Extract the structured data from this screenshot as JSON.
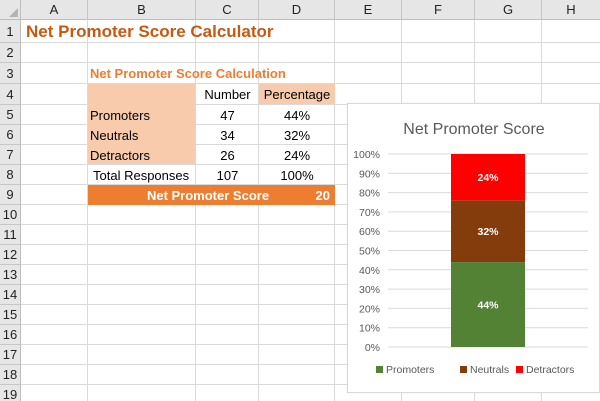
{
  "columns": [
    "A",
    "B",
    "C",
    "D",
    "E",
    "F",
    "G",
    "H"
  ],
  "rows": [
    "1",
    "2",
    "3",
    "4",
    "5",
    "6",
    "7",
    "8",
    "9",
    "10",
    "11",
    "12",
    "13",
    "14",
    "15",
    "16",
    "17",
    "18",
    "19"
  ],
  "sheet": {
    "title": "Net Promoter Score Calculator",
    "section_title": "Net Promoter Score Calculation",
    "header_number": "Number",
    "header_percentage": "Percentage",
    "rows": [
      {
        "label": "Promoters",
        "number": "47",
        "percentage": "44%"
      },
      {
        "label": "Neutrals",
        "number": "34",
        "percentage": "32%"
      },
      {
        "label": "Detractors",
        "number": "26",
        "percentage": "24%"
      }
    ],
    "total_label": "Total Responses",
    "total_number": "107",
    "total_percentage": "100%",
    "nps_label": "Net Promoter Score",
    "nps_value": "20"
  },
  "colors": {
    "title": "#c55a11",
    "peach": "#f8cbad",
    "orange": "#ed7d31",
    "promoters": "#548235",
    "neutrals": "#843c0c",
    "detractors": "#ff0000"
  },
  "chart_data": {
    "type": "bar",
    "stacked": true,
    "title": "Net Promoter Score",
    "categories": [
      ""
    ],
    "series": [
      {
        "name": "Promoters",
        "values": [
          44
        ],
        "label": "44%",
        "color": "#548235"
      },
      {
        "name": "Neutrals",
        "values": [
          32
        ],
        "label": "32%",
        "color": "#843c0c"
      },
      {
        "name": "Detractors",
        "values": [
          24
        ],
        "label": "24%",
        "color": "#ff0000"
      }
    ],
    "ylim": [
      0,
      100
    ],
    "yticks": [
      "0%",
      "10%",
      "20%",
      "30%",
      "40%",
      "50%",
      "60%",
      "70%",
      "80%",
      "90%",
      "100%"
    ],
    "grid": true,
    "legend": "bottom"
  }
}
